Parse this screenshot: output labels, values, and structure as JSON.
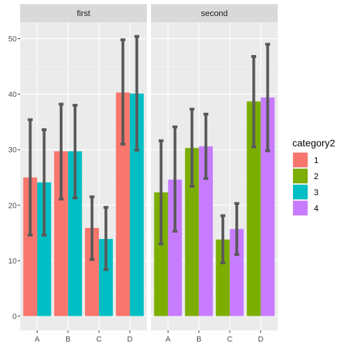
{
  "chart_data": {
    "type": "bar",
    "subtype": "grouped-bar-with-error-bars, faceted",
    "categories": [
      "A",
      "B",
      "C",
      "D"
    ],
    "ylim": [
      0,
      52
    ],
    "y_ticks": [
      0,
      10,
      20,
      30,
      40,
      50
    ],
    "grid": true,
    "legend": {
      "title": "category2",
      "placement": "right",
      "entries": [
        {
          "label": "1",
          "color": "#F8766D"
        },
        {
          "label": "2",
          "color": "#7CAE00"
        },
        {
          "label": "3",
          "color": "#00BFC4"
        },
        {
          "label": "4",
          "color": "#C77CFF"
        }
      ]
    },
    "panel_background": "#EBEBEB",
    "strip_background": "#D9D9D9",
    "errorbar_color": "#595959",
    "facets": [
      {
        "title": "first",
        "series": [
          {
            "name": "1",
            "color": "#F8766D",
            "values": [
              25.0,
              29.7,
              15.9,
              40.3
            ],
            "err_low": [
              14.6,
              21.1,
              10.2,
              31.0
            ],
            "err_high": [
              35.4,
              38.2,
              21.5,
              49.8
            ]
          },
          {
            "name": "3",
            "color": "#00BFC4",
            "values": [
              24.1,
              29.7,
              13.9,
              40.1
            ],
            "err_low": [
              14.6,
              21.3,
              8.4,
              29.9
            ],
            "err_high": [
              33.6,
              38.0,
              19.6,
              50.4
            ]
          }
        ]
      },
      {
        "title": "second",
        "series": [
          {
            "name": "2",
            "color": "#7CAE00",
            "values": [
              22.3,
              30.3,
              13.8,
              38.7
            ],
            "err_low": [
              13.0,
              23.4,
              9.6,
              30.5
            ],
            "err_high": [
              31.6,
              37.3,
              18.1,
              46.8
            ]
          },
          {
            "name": "4",
            "color": "#C77CFF",
            "values": [
              24.6,
              30.6,
              15.7,
              39.4
            ],
            "err_low": [
              15.3,
              24.8,
              11.1,
              29.8
            ],
            "err_high": [
              34.1,
              36.4,
              20.3,
              49.0
            ]
          }
        ]
      }
    ]
  }
}
